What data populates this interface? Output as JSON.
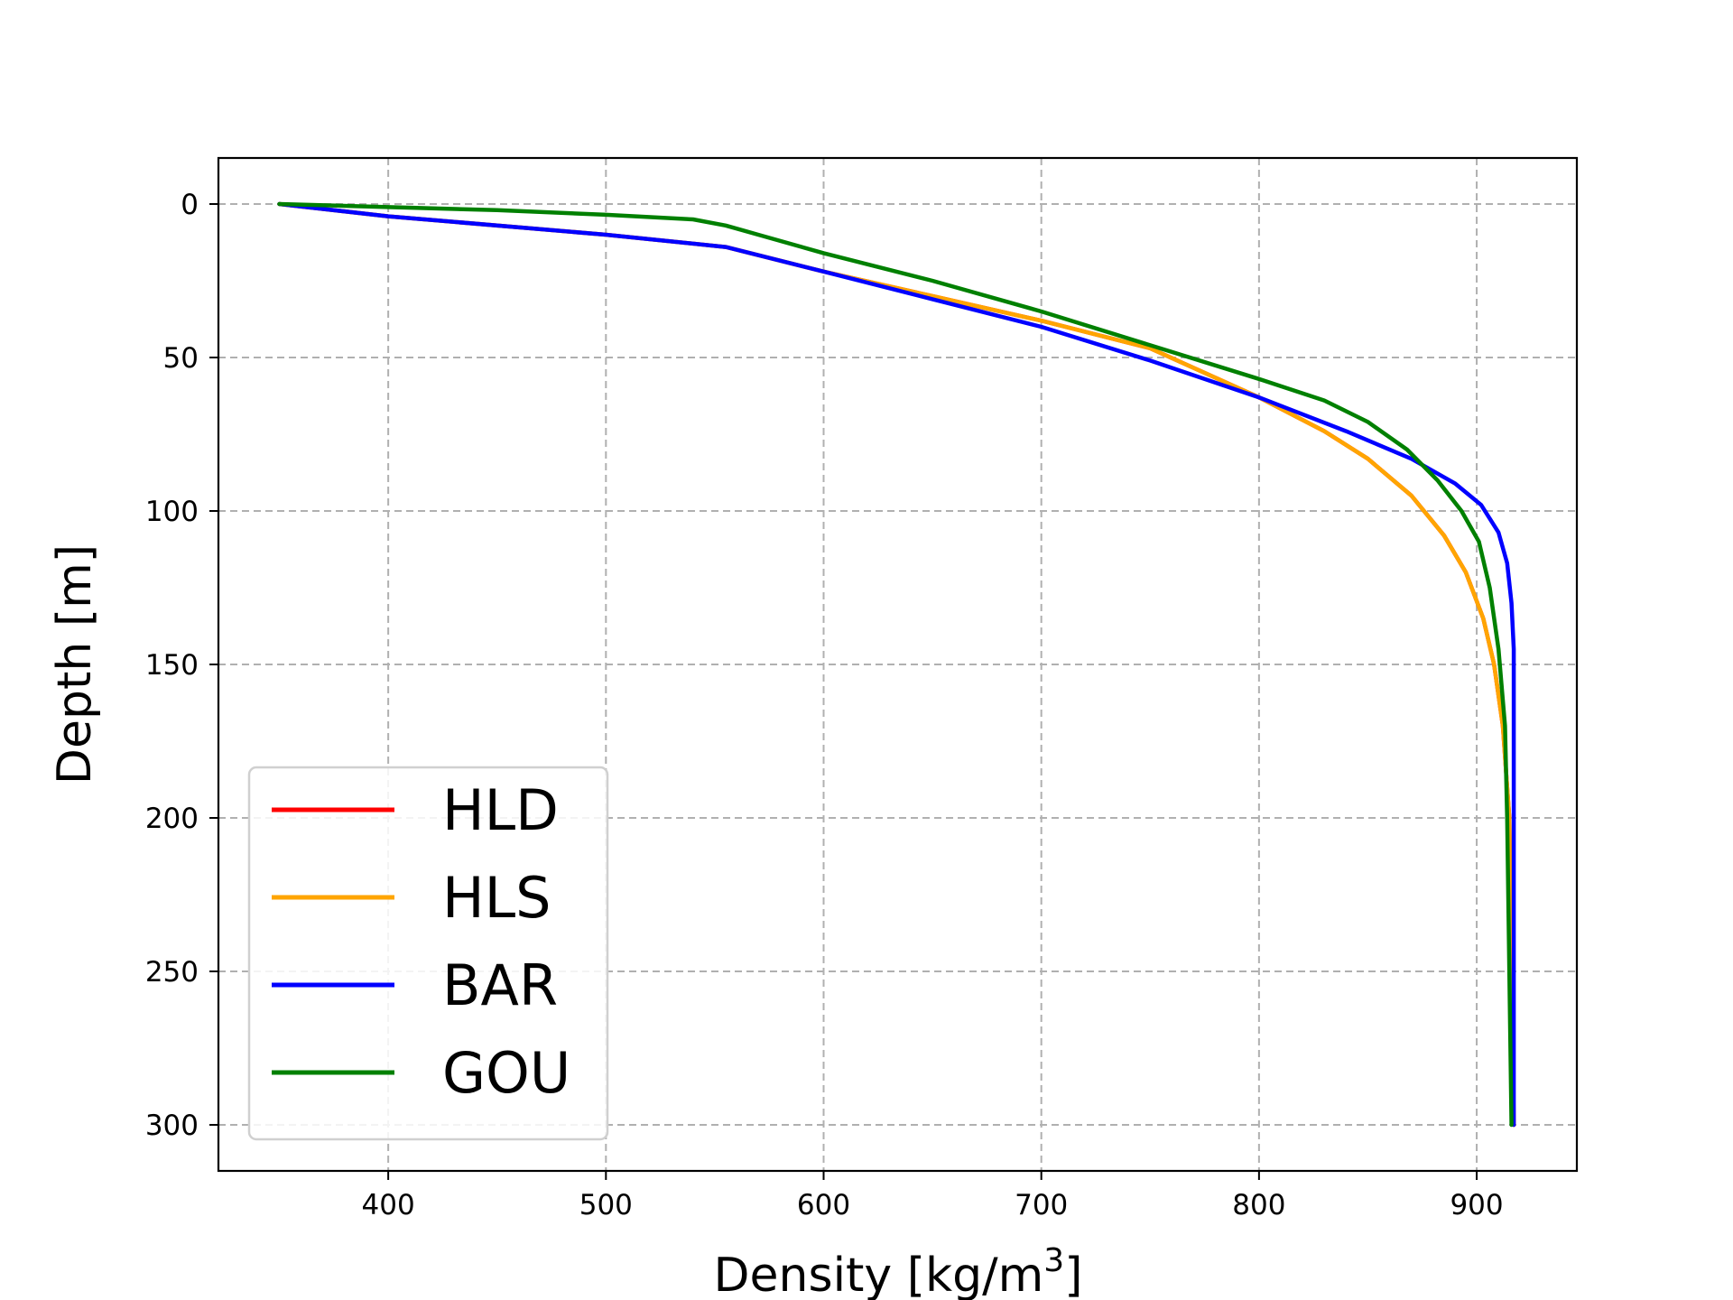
{
  "chart_data": {
    "type": "line",
    "xlabel": "Density [kg/m",
    "xlabel_sup": "3",
    "xlabel_end": "]",
    "ylabel": "Depth [m]",
    "xlim": [
      322,
      946
    ],
    "ylim": [
      315,
      -15
    ],
    "y_inverted": true,
    "x_ticks": [
      400,
      500,
      600,
      700,
      800,
      900
    ],
    "y_ticks": [
      0,
      50,
      100,
      150,
      200,
      250,
      300
    ],
    "grid": true,
    "legend_position": "lower-left",
    "series": [
      {
        "name": "HLD",
        "color": "#ff0000",
        "points": [
          [
            350,
            0
          ],
          [
            400,
            4
          ],
          [
            500,
            10
          ],
          [
            555,
            14
          ],
          [
            600,
            22
          ],
          [
            650,
            30
          ],
          [
            700,
            38
          ],
          [
            750,
            47
          ],
          [
            800,
            63
          ],
          [
            830,
            74
          ],
          [
            850,
            83
          ],
          [
            870,
            95
          ],
          [
            885,
            108
          ],
          [
            895,
            120
          ],
          [
            903,
            135
          ],
          [
            908,
            150
          ],
          [
            912,
            170
          ],
          [
            915,
            200
          ],
          [
            916,
            250
          ],
          [
            917,
            300
          ]
        ]
      },
      {
        "name": "HLS",
        "color": "#ffa500",
        "points": [
          [
            350,
            0
          ],
          [
            400,
            4
          ],
          [
            500,
            10
          ],
          [
            555,
            14
          ],
          [
            600,
            22
          ],
          [
            650,
            30
          ],
          [
            700,
            38
          ],
          [
            750,
            47
          ],
          [
            800,
            63
          ],
          [
            830,
            74
          ],
          [
            850,
            83
          ],
          [
            870,
            95
          ],
          [
            885,
            108
          ],
          [
            895,
            120
          ],
          [
            903,
            135
          ],
          [
            908,
            150
          ],
          [
            912,
            170
          ],
          [
            915,
            200
          ],
          [
            916,
            250
          ],
          [
            917,
            300
          ]
        ]
      },
      {
        "name": "BAR",
        "color": "#0000ff",
        "points": [
          [
            350,
            0
          ],
          [
            400,
            4
          ],
          [
            500,
            10
          ],
          [
            555,
            14
          ],
          [
            600,
            22
          ],
          [
            650,
            31
          ],
          [
            700,
            40
          ],
          [
            750,
            51
          ],
          [
            800,
            63
          ],
          [
            840,
            74
          ],
          [
            870,
            83
          ],
          [
            890,
            91
          ],
          [
            902,
            98
          ],
          [
            910,
            107
          ],
          [
            914,
            117
          ],
          [
            916,
            130
          ],
          [
            917,
            145
          ],
          [
            917,
            200
          ],
          [
            917,
            250
          ],
          [
            917,
            300
          ]
        ]
      },
      {
        "name": "GOU",
        "color": "#008000",
        "points": [
          [
            350,
            0
          ],
          [
            400,
            1
          ],
          [
            450,
            2
          ],
          [
            500,
            3.5
          ],
          [
            540,
            5
          ],
          [
            555,
            7
          ],
          [
            570,
            10
          ],
          [
            600,
            16
          ],
          [
            650,
            25
          ],
          [
            700,
            35
          ],
          [
            750,
            46
          ],
          [
            800,
            57
          ],
          [
            830,
            64
          ],
          [
            850,
            71
          ],
          [
            868,
            80
          ],
          [
            882,
            90
          ],
          [
            893,
            100
          ],
          [
            901,
            110
          ],
          [
            906,
            125
          ],
          [
            910,
            145
          ],
          [
            913,
            170
          ],
          [
            914,
            200
          ],
          [
            915,
            250
          ],
          [
            916,
            300
          ]
        ]
      }
    ]
  }
}
